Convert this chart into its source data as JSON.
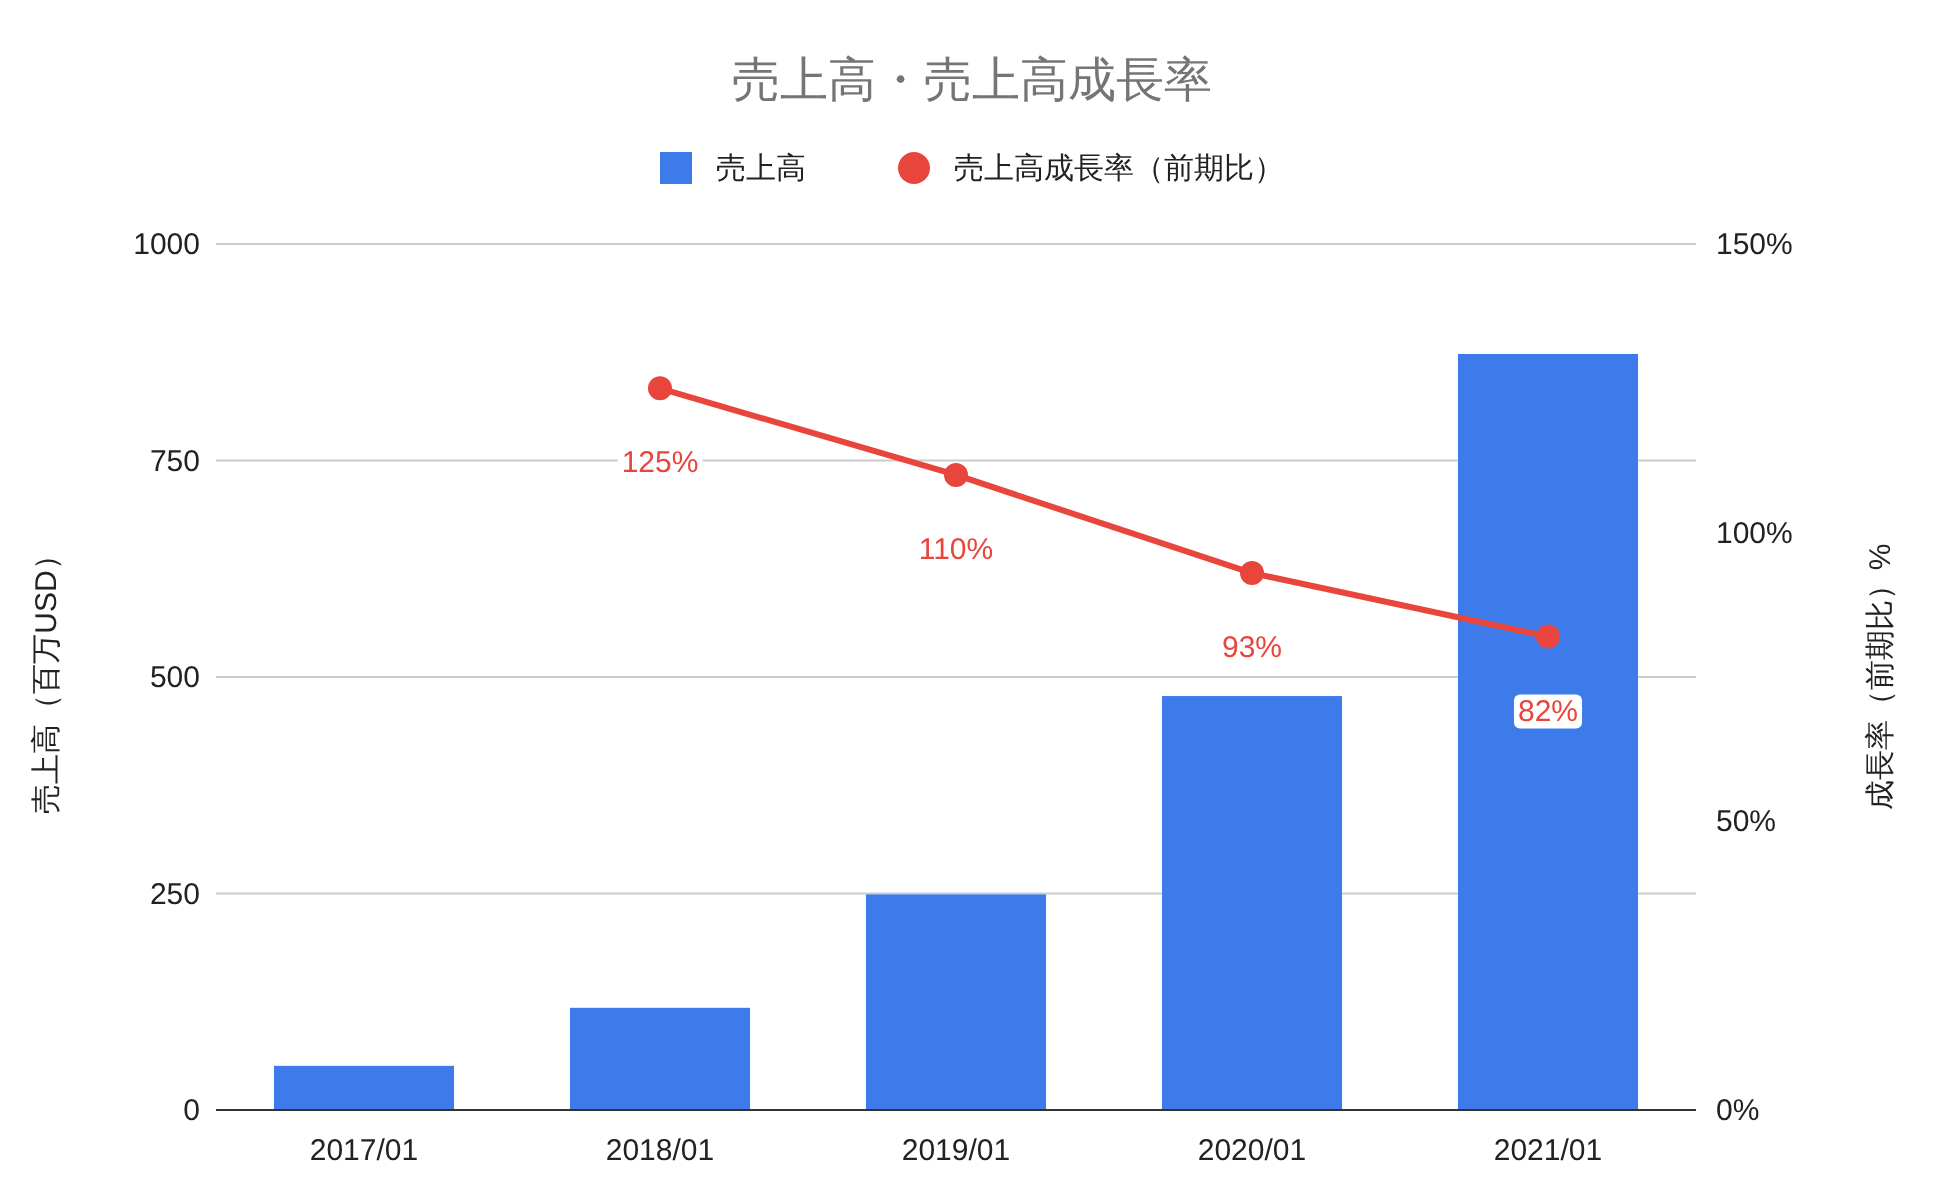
{
  "chart_data": {
    "type": "bar",
    "title": "売上高・売上高成長率",
    "ylabel": "売上高（百万USD）",
    "y2label": "成長率（前期比）%",
    "categories": [
      "2017/01",
      "2018/01",
      "2019/01",
      "2020/01",
      "2021/01"
    ],
    "series": [
      {
        "name": "売上高",
        "color": "#3c7be9",
        "values": [
          51,
          118,
          249,
          478,
          873
        ]
      },
      {
        "name": "売上高成長率（前期比）",
        "type": "line",
        "axis": "y2",
        "color": "#e8453c",
        "values": [
          null,
          125,
          110,
          93,
          82
        ],
        "value_labels": [
          null,
          "125%",
          "110%",
          "93%",
          "82%"
        ]
      }
    ],
    "ylim": [
      0,
      1000
    ],
    "yticks": [
      0,
      250,
      500,
      750,
      1000
    ],
    "y2lim": [
      0,
      150
    ],
    "y2ticks": [
      {
        "value": 0,
        "label": "0%"
      },
      {
        "value": 50,
        "label": "50%"
      },
      {
        "value": 100,
        "label": "100%"
      },
      {
        "value": 150,
        "label": "150%"
      }
    ],
    "grid": "y",
    "legend": "top",
    "marker": "circle",
    "line_style": "solid"
  }
}
